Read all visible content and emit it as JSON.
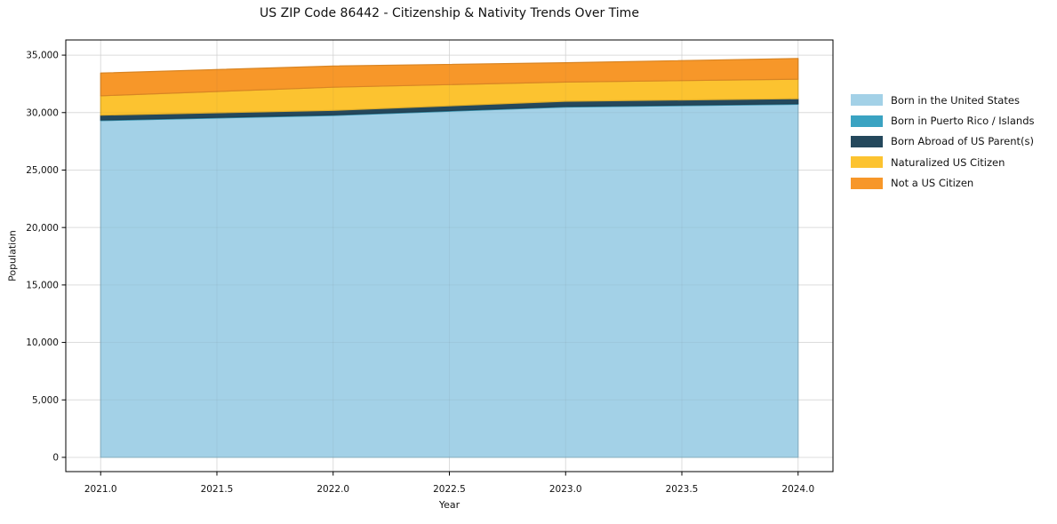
{
  "chart_data": {
    "type": "area",
    "stacked": true,
    "title": "US ZIP Code 86442 - Citizenship & Nativity Trends Over Time",
    "xlabel": "Year",
    "ylabel": "Population",
    "x": [
      2021,
      2022,
      2023,
      2024
    ],
    "series": [
      {
        "name": "Born in the United States",
        "color": "#a3d1e7",
        "values": [
          29300,
          29750,
          30480,
          30720
        ]
      },
      {
        "name": "Born in Puerto Rico / Islands",
        "color": "#3aa3c2",
        "values": [
          60,
          60,
          60,
          60
        ]
      },
      {
        "name": "Born Abroad of US Parent(s)",
        "color": "#24485c",
        "values": [
          420,
          380,
          450,
          430
        ]
      },
      {
        "name": "Naturalized US Citizen",
        "color": "#fcc330",
        "values": [
          1680,
          2020,
          1670,
          1700
        ]
      },
      {
        "name": "Not a US Citizen",
        "color": "#f79729",
        "values": [
          1980,
          1840,
          1680,
          1800
        ]
      }
    ],
    "xticks": [
      2021.0,
      2021.5,
      2022.0,
      2022.5,
      2023.0,
      2023.5,
      2024.0
    ],
    "xtick_labels": [
      "2021.0",
      "2021.5",
      "2022.0",
      "2022.5",
      "2023.0",
      "2023.5",
      "2024.0"
    ],
    "yticks": [
      0,
      5000,
      10000,
      15000,
      20000,
      25000,
      30000,
      35000
    ],
    "ytick_labels": [
      "0",
      "5,000",
      "10,000",
      "15,000",
      "20,000",
      "25,000",
      "30,000",
      "35,000"
    ],
    "xlim": [
      2020.85,
      2024.15
    ],
    "ylim": [
      -1240,
      36320
    ],
    "grid": true,
    "legend_position": "outside-right",
    "colors": {
      "grid": "#e7e7e7",
      "spine": "#000000",
      "text": "#111111"
    }
  }
}
